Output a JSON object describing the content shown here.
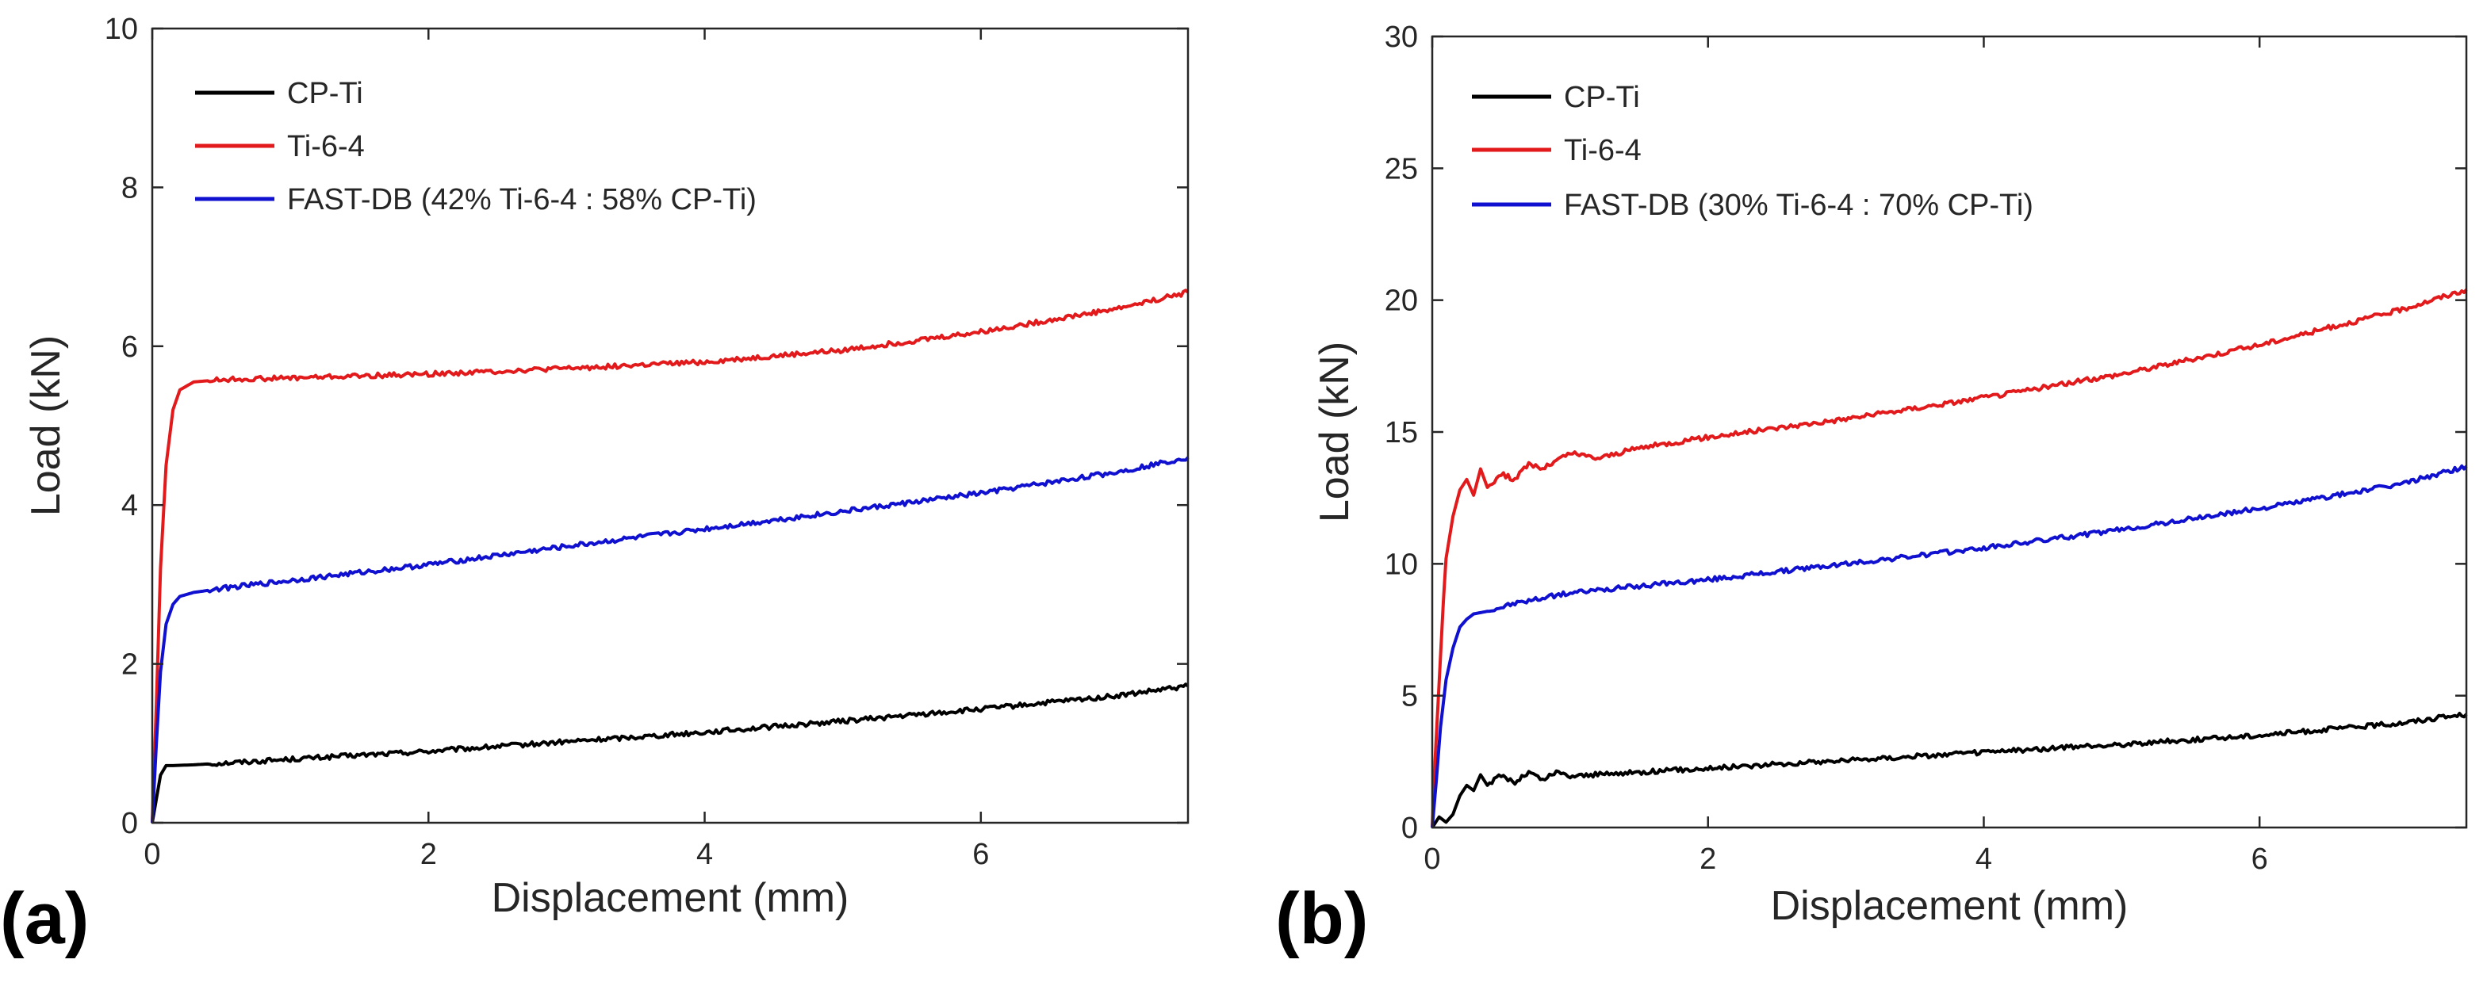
{
  "chart_data": [
    {
      "type": "line",
      "panel_label": "(a)",
      "xlabel": "Displacement (mm)",
      "ylabel": "Load (kN)",
      "xlim": [
        0,
        7.5
      ],
      "ylim": [
        0,
        10
      ],
      "xticks": [
        0,
        2,
        4,
        6
      ],
      "yticks": [
        0,
        2,
        4,
        6,
        8,
        10
      ],
      "xtick_labels": [
        "0",
        "2",
        "4",
        "6"
      ],
      "ytick_labels": [
        "0",
        "2",
        "4",
        "6",
        "8",
        "10"
      ],
      "legend_position": "top-left",
      "series": [
        {
          "name": "CP-Ti",
          "color": "#000000",
          "x": [
            0,
            0.03,
            0.06,
            0.1,
            0.15,
            0.3,
            1,
            2,
            3,
            4,
            5,
            6,
            7,
            7.5
          ],
          "y": [
            0,
            0.3,
            0.6,
            0.72,
            0.72,
            0.73,
            0.8,
            0.9,
            1.02,
            1.14,
            1.28,
            1.43,
            1.6,
            1.72
          ]
        },
        {
          "name": "Ti-6-4",
          "color": "#e31a1c",
          "x": [
            0,
            0.03,
            0.06,
            0.1,
            0.15,
            0.2,
            0.3,
            0.5,
            1,
            2,
            3,
            4,
            5,
            6,
            7,
            7.5
          ],
          "y": [
            0,
            1.5,
            3.2,
            4.5,
            5.2,
            5.45,
            5.55,
            5.58,
            5.6,
            5.65,
            5.72,
            5.8,
            5.95,
            6.18,
            6.48,
            6.68
          ]
        },
        {
          "name": "FAST-DB (42% Ti-6-4 : 58% CP-Ti)",
          "color": "#1010d0",
          "x": [
            0,
            0.03,
            0.06,
            0.1,
            0.15,
            0.2,
            0.3,
            0.5,
            1,
            2,
            3,
            4,
            5,
            6,
            7,
            7.5
          ],
          "y": [
            0,
            1.0,
            1.9,
            2.5,
            2.75,
            2.85,
            2.9,
            2.95,
            3.05,
            3.25,
            3.48,
            3.7,
            3.92,
            4.15,
            4.42,
            4.6
          ]
        }
      ]
    },
    {
      "type": "line",
      "panel_label": "(b)",
      "xlabel": "Displacement (mm)",
      "ylabel": "Load (kN)",
      "xlim": [
        0,
        7.5
      ],
      "ylim": [
        0,
        30
      ],
      "xticks": [
        0,
        2,
        4,
        6
      ],
      "yticks": [
        0,
        5,
        10,
        15,
        20,
        25,
        30
      ],
      "xtick_labels": [
        "0",
        "2",
        "4",
        "6"
      ],
      "ytick_labels": [
        "0",
        "5",
        "10",
        "15",
        "20",
        "25",
        "30"
      ],
      "legend_position": "top-left",
      "series": [
        {
          "name": "CP-Ti",
          "color": "#000000",
          "x": [
            0,
            0.05,
            0.1,
            0.15,
            0.2,
            0.25,
            0.3,
            0.35,
            0.4,
            0.5,
            0.6,
            0.7,
            0.8,
            0.9,
            1,
            1.5,
            2,
            3,
            4,
            5,
            6,
            7,
            7.5
          ],
          "y": [
            0,
            0.4,
            0.2,
            0.5,
            1.2,
            1.6,
            1.4,
            2.0,
            1.6,
            2.0,
            1.7,
            2.1,
            1.8,
            2.1,
            1.95,
            2.1,
            2.25,
            2.55,
            2.85,
            3.15,
            3.5,
            3.95,
            4.3
          ]
        },
        {
          "name": "Ti-6-4",
          "color": "#e31a1c",
          "x": [
            0,
            0.02,
            0.05,
            0.08,
            0.1,
            0.15,
            0.2,
            0.25,
            0.3,
            0.35,
            0.4,
            0.5,
            0.6,
            0.7,
            0.8,
            1,
            1.2,
            1.5,
            2,
            3,
            4,
            5,
            6,
            7,
            7.5
          ],
          "y": [
            0,
            2.5,
            5.5,
            8.5,
            10.2,
            11.8,
            12.8,
            13.2,
            12.6,
            13.6,
            12.9,
            13.4,
            13.2,
            13.8,
            13.6,
            14.2,
            14.0,
            14.4,
            14.8,
            15.5,
            16.3,
            17.2,
            18.3,
            19.6,
            20.4
          ]
        },
        {
          "name": "FAST-DB (30% Ti-6-4 : 70% CP-Ti)",
          "color": "#1010d0",
          "x": [
            0,
            0.03,
            0.06,
            0.1,
            0.15,
            0.2,
            0.25,
            0.3,
            0.4,
            0.6,
            1,
            2,
            3,
            4,
            5,
            6,
            7,
            7.5
          ],
          "y": [
            0,
            1.8,
            3.8,
            5.6,
            6.8,
            7.6,
            7.9,
            8.1,
            8.2,
            8.5,
            8.9,
            9.4,
            10.0,
            10.6,
            11.3,
            12.1,
            13.0,
            13.7
          ]
        }
      ]
    }
  ]
}
